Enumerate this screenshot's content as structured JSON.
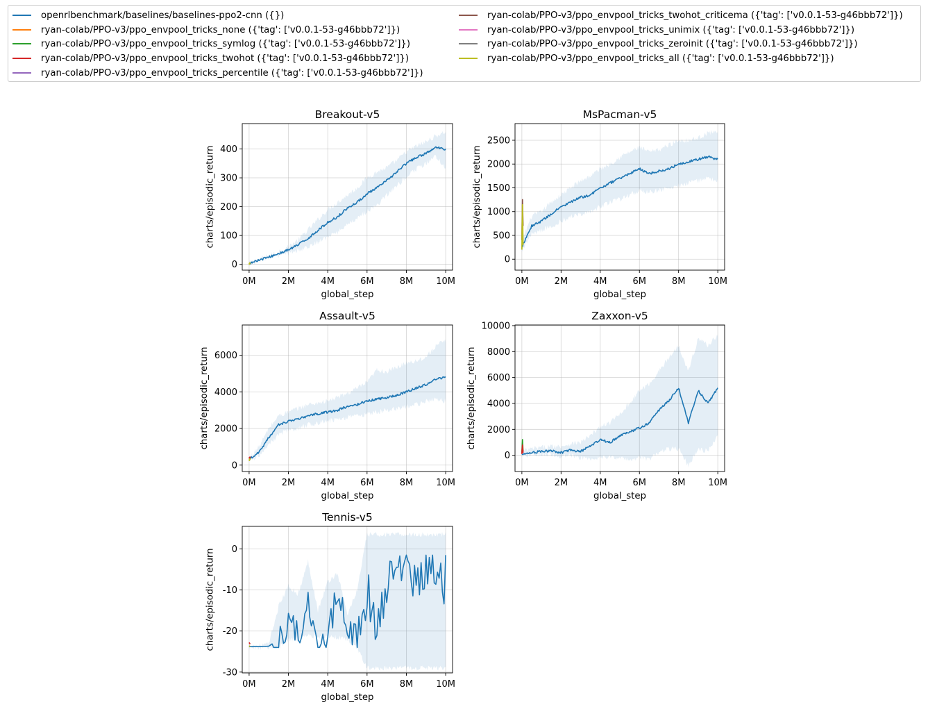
{
  "figure": {
    "xlabel": "global_step",
    "ylabel": "charts/episodic_return"
  },
  "legend": {
    "entries": [
      {
        "label": "openrlbenchmark/baselines/baselines-ppo2-cnn ({})",
        "color": "#1f77b4"
      },
      {
        "label": "ryan-colab/PPO-v3/ppo_envpool_tricks_none ({'tag': ['v0.0.1-53-g46bbb72']})",
        "color": "#ff7f0e"
      },
      {
        "label": "ryan-colab/PPO-v3/ppo_envpool_tricks_symlog ({'tag': ['v0.0.1-53-g46bbb72']})",
        "color": "#2ca02c"
      },
      {
        "label": "ryan-colab/PPO-v3/ppo_envpool_tricks_twohot ({'tag': ['v0.0.1-53-g46bbb72']})",
        "color": "#d62728"
      },
      {
        "label": "ryan-colab/PPO-v3/ppo_envpool_tricks_percentile ({'tag': ['v0.0.1-53-g46bbb72']})",
        "color": "#9467bd"
      },
      {
        "label": "ryan-colab/PPO-v3/ppo_envpool_tricks_twohot_criticema ({'tag': ['v0.0.1-53-g46bbb72']})",
        "color": "#8c564b"
      },
      {
        "label": "ryan-colab/PPO-v3/ppo_envpool_tricks_unimix ({'tag': ['v0.0.1-53-g46bbb72']})",
        "color": "#e377c2"
      },
      {
        "label": "ryan-colab/PPO-v3/ppo_envpool_tricks_zeroinit ({'tag': ['v0.0.1-53-g46bbb72']})",
        "color": "#7f7f7f"
      },
      {
        "label": "ryan-colab/PPO-v3/ppo_envpool_tricks_all ({'tag': ['v0.0.1-53-g46bbb72']})",
        "color": "#bcbd22"
      }
    ]
  },
  "chart_data": [
    {
      "type": "line",
      "title": "Breakout-v5",
      "xlabel": "global_step",
      "ylabel": "charts/episodic_return",
      "xlim": [
        -0.35,
        10.35
      ],
      "ylim": [
        -20,
        488
      ],
      "xticks": [
        0,
        2,
        4,
        6,
        8,
        10
      ],
      "xtick_labels": [
        "0M",
        "2M",
        "4M",
        "6M",
        "8M",
        "10M"
      ],
      "yticks": [
        0,
        100,
        200,
        300,
        400
      ],
      "grid": true,
      "series": [
        {
          "name": "openrlbenchmark/baselines/baselines-ppo2-cnn ({})",
          "x": [
            0,
            0.5,
            1,
            1.5,
            2,
            2.5,
            3,
            3.5,
            4,
            4.5,
            5,
            5.5,
            6,
            6.5,
            7,
            7.5,
            8,
            8.5,
            9,
            9.5,
            10
          ],
          "y": [
            3,
            15,
            25,
            37,
            50,
            68,
            90,
            118,
            145,
            165,
            195,
            215,
            245,
            265,
            290,
            320,
            350,
            370,
            385,
            405,
            400
          ],
          "lower": [
            2,
            13,
            22,
            30,
            38,
            48,
            60,
            78,
            95,
            110,
            140,
            160,
            185,
            205,
            240,
            270,
            305,
            330,
            350,
            375,
            330
          ],
          "upper": [
            5,
            18,
            30,
            45,
            62,
            85,
            120,
            155,
            190,
            215,
            240,
            265,
            300,
            320,
            335,
            360,
            390,
            410,
            425,
            445,
            460
          ]
        },
        {
          "name": "ryan-colab/PPO-v3/ppo_envpool_tricks_all ({'tag': ['v0.0.1-53-g46bbb72']})",
          "x": [
            0,
            0.05
          ],
          "y": [
            2,
            4
          ]
        }
      ]
    },
    {
      "type": "line",
      "title": "MsPacman-v5",
      "xlabel": "global_step",
      "ylabel": "charts/episodic_return",
      "xlim": [
        -0.35,
        10.35
      ],
      "ylim": [
        -230,
        2850
      ],
      "xticks": [
        0,
        2,
        4,
        6,
        8,
        10
      ],
      "xtick_labels": [
        "0M",
        "2M",
        "4M",
        "6M",
        "8M",
        "10M"
      ],
      "yticks": [
        0,
        500,
        1000,
        1500,
        2000,
        2500
      ],
      "grid": true,
      "series": [
        {
          "name": "openrlbenchmark/baselines/baselines-ppo2-cnn ({})",
          "x": [
            0,
            0.5,
            1,
            1.5,
            2,
            2.5,
            3,
            3.5,
            4,
            4.5,
            5,
            5.5,
            6,
            6.5,
            7,
            7.5,
            8,
            8.5,
            9,
            9.5,
            10
          ],
          "y": [
            250,
            700,
            800,
            950,
            1100,
            1200,
            1300,
            1350,
            1500,
            1600,
            1700,
            1800,
            1900,
            1800,
            1850,
            1900,
            2000,
            2050,
            2100,
            2150,
            2100
          ],
          "lower": [
            200,
            550,
            600,
            700,
            800,
            900,
            950,
            1000,
            1100,
            1200,
            1250,
            1350,
            1450,
            1400,
            1450,
            1500,
            1550,
            1600,
            1650,
            1700,
            1650
          ],
          "upper": [
            400,
            900,
            1000,
            1200,
            1350,
            1500,
            1650,
            1750,
            1900,
            2000,
            2150,
            2250,
            2350,
            2250,
            2300,
            2400,
            2500,
            2500,
            2550,
            2650,
            2700
          ]
        },
        {
          "name": "ryan-colab/PPO-v3/ppo_envpool_tricks_twohot_criticema ({'tag': ['v0.0.1-53-g46bbb72']})",
          "x": [
            0,
            0.03,
            0.06
          ],
          "y": [
            400,
            1250,
            700
          ]
        },
        {
          "name": "ryan-colab/PPO-v3/ppo_envpool_tricks_all ({'tag': ['v0.0.1-53-g46bbb72']})",
          "x": [
            0,
            0.03,
            0.06
          ],
          "y": [
            200,
            1150,
            300
          ]
        }
      ]
    },
    {
      "type": "line",
      "title": "Assault-v5",
      "xlabel": "global_step",
      "ylabel": "charts/episodic_return",
      "xlim": [
        -0.35,
        10.35
      ],
      "ylim": [
        -350,
        7650
      ],
      "xticks": [
        0,
        2,
        4,
        6,
        8,
        10
      ],
      "xtick_labels": [
        "0M",
        "2M",
        "4M",
        "6M",
        "8M",
        "10M"
      ],
      "yticks": [
        0,
        2000,
        4000,
        6000
      ],
      "grid": true,
      "series": [
        {
          "name": "openrlbenchmark/baselines/baselines-ppo2-cnn ({})",
          "x": [
            0,
            0.5,
            1,
            1.5,
            2,
            2.5,
            3,
            3.5,
            4,
            4.5,
            5,
            5.5,
            6,
            6.5,
            7,
            7.5,
            8,
            8.5,
            9,
            9.5,
            10
          ],
          "y": [
            300,
            700,
            1500,
            2200,
            2400,
            2500,
            2700,
            2800,
            2900,
            3000,
            3200,
            3300,
            3500,
            3600,
            3700,
            3800,
            4000,
            4200,
            4400,
            4700,
            4800
          ],
          "lower": [
            250,
            500,
            1100,
            1700,
            1900,
            2000,
            2200,
            2300,
            2400,
            2500,
            2600,
            2700,
            2800,
            2900,
            3000,
            3100,
            3200,
            3300,
            3500,
            3600,
            3500
          ],
          "upper": [
            400,
            1000,
            2000,
            2700,
            2900,
            3100,
            3300,
            3400,
            3500,
            3700,
            3900,
            4200,
            4500,
            5200,
            5100,
            5300,
            5600,
            5700,
            5900,
            6500,
            6800
          ]
        },
        {
          "name": "ryan-colab/PPO-v3/ppo_envpool_tricks_twohot ({'tag': ['v0.0.1-53-g46bbb72']})",
          "x": [
            0,
            0.05
          ],
          "y": [
            380,
            420
          ]
        },
        {
          "name": "ryan-colab/PPO-v3/ppo_envpool_tricks_all ({'tag': ['v0.0.1-53-g46bbb72']})",
          "x": [
            0,
            0.05
          ],
          "y": [
            250,
            350
          ]
        }
      ]
    },
    {
      "type": "line",
      "title": "Zaxxon-v5",
      "xlabel": "global_step",
      "ylabel": "charts/episodic_return",
      "xlim": [
        -0.35,
        10.35
      ],
      "ylim": [
        -1250,
        10050
      ],
      "xticks": [
        0,
        2,
        4,
        6,
        8,
        10
      ],
      "xtick_labels": [
        "0M",
        "2M",
        "4M",
        "6M",
        "8M",
        "10M"
      ],
      "yticks": [
        0,
        2000,
        4000,
        6000,
        8000,
        10000
      ],
      "grid": true,
      "series": [
        {
          "name": "openrlbenchmark/baselines/baselines-ppo2-cnn ({})",
          "x": [
            0,
            0.5,
            1,
            1.5,
            2,
            2.5,
            3,
            3.5,
            4,
            4.5,
            5,
            5.5,
            6,
            6.5,
            7,
            7.5,
            8,
            8.5,
            9,
            9.5,
            10
          ],
          "y": [
            100,
            200,
            300,
            350,
            200,
            400,
            300,
            700,
            1200,
            1000,
            1500,
            1800,
            2100,
            2500,
            3500,
            4200,
            5200,
            2500,
            5000,
            4000,
            5200
          ],
          "lower": [
            0,
            0,
            0,
            100,
            -100,
            0,
            -200,
            -300,
            -200,
            -100,
            -200,
            -300,
            -200,
            -300,
            200,
            500,
            500,
            -800,
            500,
            300,
            1500
          ],
          "upper": [
            300,
            500,
            600,
            700,
            700,
            900,
            1000,
            1500,
            2200,
            2500,
            3200,
            4000,
            5000,
            5500,
            6500,
            7500,
            8500,
            6500,
            9000,
            8500,
            9300
          ]
        },
        {
          "name": "ryan-colab/PPO-v3/ppo_envpool_tricks_symlog ({'tag': ['v0.0.1-53-g46bbb72']})",
          "x": [
            0,
            0.03,
            0.06
          ],
          "y": [
            200,
            1200,
            300
          ]
        },
        {
          "name": "ryan-colab/PPO-v3/ppo_envpool_tricks_twohot ({'tag': ['v0.0.1-53-g46bbb72']})",
          "x": [
            0,
            0.03,
            0.06
          ],
          "y": [
            100,
            800,
            200
          ]
        }
      ]
    },
    {
      "type": "line",
      "title": "Tennis-v5",
      "xlabel": "global_step",
      "ylabel": "charts/episodic_return",
      "xlim": [
        -0.35,
        10.35
      ],
      "ylim": [
        -30.2,
        5.5
      ],
      "xticks": [
        0,
        2,
        4,
        6,
        8,
        10
      ],
      "xtick_labels": [
        "0M",
        "2M",
        "4M",
        "6M",
        "8M",
        "10M"
      ],
      "yticks": [
        -30,
        -20,
        -10,
        0
      ],
      "grid": true,
      "series": [
        {
          "name": "openrlbenchmark/baselines/baselines-ppo2-cnn ({})",
          "x": [
            0,
            0.5,
            1,
            1.5,
            2,
            2.5,
            3,
            3.5,
            4,
            4.5,
            5,
            5.5,
            6,
            6.5,
            7,
            7.5,
            8,
            8.5,
            9,
            9.5,
            10
          ],
          "y": [
            -23.8,
            -23.8,
            -23.7,
            -22,
            -18,
            -21,
            -12,
            -21,
            -22,
            -10,
            -20,
            -22,
            -12,
            -17,
            -8,
            -10,
            -2,
            -7,
            -5,
            -8,
            -7
          ],
          "lower": [
            -24,
            -24,
            -24,
            -24,
            -22,
            -22,
            -21,
            -21.5,
            -21.5,
            -21.5,
            -22,
            -24,
            -29,
            -29,
            -29,
            -29,
            -29,
            -29,
            -29,
            -29,
            -29
          ],
          "upper": [
            -23.5,
            -23.5,
            -23.2,
            -14,
            -9,
            -11,
            -3,
            -15,
            -8,
            -6,
            -16,
            -10,
            3.5,
            3.5,
            3.5,
            3.5,
            3.5,
            3.5,
            3.5,
            3.5,
            3.5
          ]
        },
        {
          "name": "ryan-colab/PPO-v3/ppo_envpool_tricks_twohot ({'tag': ['v0.0.1-53-g46bbb72']})",
          "x": [
            0,
            0.05
          ],
          "y": [
            -22.8,
            -23.2
          ]
        },
        {
          "name": "ryan-colab/PPO-v3/ppo_envpool_tricks_all ({'tag': ['v0.0.1-53-g46bbb72']})",
          "x": [
            0,
            0.05
          ],
          "y": [
            -23.8,
            -23.6
          ]
        }
      ]
    }
  ]
}
